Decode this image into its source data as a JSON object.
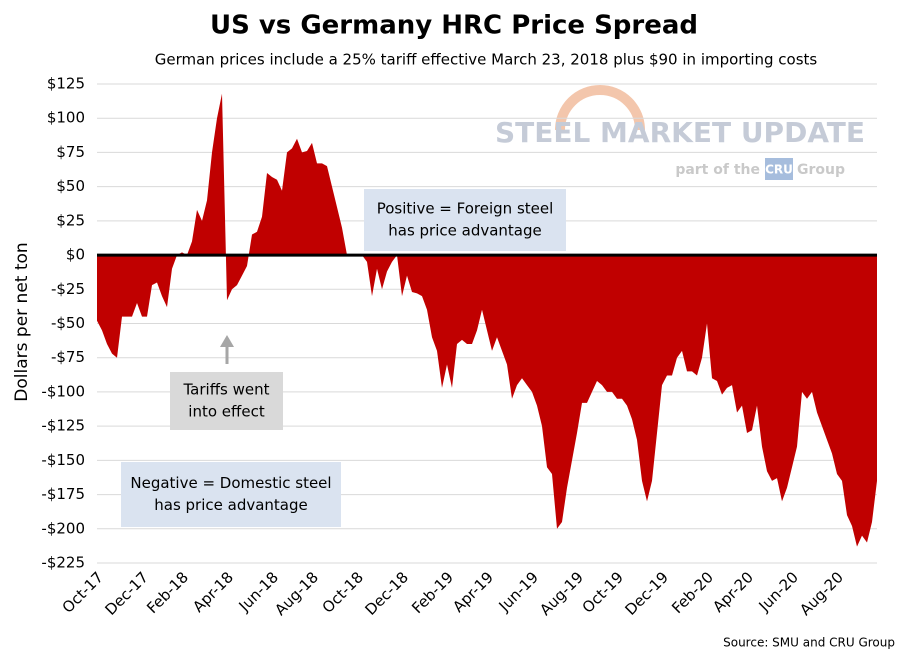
{
  "chart_data": {
    "type": "area",
    "title": "US vs Germany HRC Price Spread",
    "subtitle": "German prices include a 25% tariff effective March 23, 2018 plus $90 in importing costs",
    "y_label": "Dollars per net ton",
    "source": "Source: SMU and CRU Group",
    "logo": {
      "name": "STEEL MARKET UPDATE",
      "tagline_before": "part of the",
      "tagline_box": "CRU",
      "tagline_after": "Group"
    },
    "annotations": [
      {
        "lines": [
          "Positive = Foreign steel",
          "has price advantage"
        ]
      },
      {
        "lines": [
          "Tariffs went",
          "into effect"
        ]
      },
      {
        "lines": [
          "Negative = Domestic steel",
          "has price advantage"
        ]
      }
    ],
    "color": "#c00000",
    "grid": true,
    "ylim": [
      -225,
      125
    ],
    "yticks": [
      {
        "value": -225,
        "label": "-$225"
      },
      {
        "value": -200,
        "label": "-$200"
      },
      {
        "value": -175,
        "label": "-$175"
      },
      {
        "value": -150,
        "label": "-$150"
      },
      {
        "value": -125,
        "label": "-$125"
      },
      {
        "value": -100,
        "label": "-$100"
      },
      {
        "value": -75,
        "label": "-$75"
      },
      {
        "value": -50,
        "label": "-$50"
      },
      {
        "value": -25,
        "label": "-$25"
      },
      {
        "value": 0,
        "label": "$0"
      },
      {
        "value": 25,
        "label": "$25"
      },
      {
        "value": 50,
        "label": "$50"
      },
      {
        "value": 75,
        "label": "$75"
      },
      {
        "value": 100,
        "label": "$100"
      },
      {
        "value": 125,
        "label": "$125"
      }
    ],
    "categories": [
      "Oct-17",
      null,
      null,
      null,
      null,
      null,
      null,
      null,
      null,
      "Dec-17",
      null,
      null,
      null,
      null,
      null,
      null,
      null,
      "Feb-18",
      null,
      null,
      null,
      null,
      null,
      null,
      null,
      null,
      "Apr-18",
      null,
      null,
      null,
      null,
      null,
      null,
      null,
      null,
      "Jun-18",
      null,
      null,
      null,
      null,
      null,
      null,
      null,
      "Aug-18",
      null,
      null,
      null,
      null,
      null,
      null,
      null,
      null,
      "Oct-18",
      null,
      null,
      null,
      null,
      null,
      null,
      null,
      null,
      "Dec-18",
      null,
      null,
      null,
      null,
      null,
      null,
      null,
      null,
      "Feb-19",
      null,
      null,
      null,
      null,
      null,
      null,
      null,
      "Apr-19",
      null,
      null,
      null,
      null,
      null,
      null,
      null,
      null,
      "Jun-19",
      null,
      null,
      null,
      null,
      null,
      null,
      null,
      null,
      "Aug-19",
      null,
      null,
      null,
      null,
      null,
      null,
      null,
      "Oct-19",
      null,
      null,
      null,
      null,
      null,
      null,
      null,
      null,
      "Dec-19",
      null,
      null,
      null,
      null,
      null,
      null,
      null,
      null,
      "Feb-20",
      null,
      null,
      null,
      null,
      null,
      null,
      null,
      "Apr-20",
      null,
      null,
      null,
      null,
      null,
      null,
      null,
      null,
      "Jun-20",
      null,
      null,
      null,
      null,
      null,
      null,
      null,
      null,
      "Aug-20",
      null,
      null,
      null,
      null,
      null,
      null,
      null,
      null
    ],
    "values": [
      -48,
      -55,
      -65,
      -72,
      -75,
      -45,
      -45,
      -45,
      -35,
      -45,
      -45,
      -22,
      -20,
      -30,
      -38,
      -10,
      0,
      2,
      0,
      10,
      33,
      25,
      40,
      75,
      100,
      118,
      -33,
      -25,
      -22,
      -15,
      -8,
      15,
      17,
      28,
      60,
      57,
      55,
      47,
      75,
      78,
      85,
      75,
      76,
      82,
      67,
      67,
      65,
      50,
      35,
      20,
      0,
      0,
      0,
      0,
      -5,
      -30,
      -10,
      -25,
      -12,
      -5,
      0,
      -30,
      -15,
      -27,
      -28,
      -30,
      -40,
      -60,
      -70,
      -97,
      -80,
      -97,
      -65,
      -62,
      -65,
      -65,
      -55,
      -40,
      -55,
      -70,
      -60,
      -70,
      -80,
      -105,
      -95,
      -90,
      -95,
      -100,
      -110,
      -125,
      -155,
      -160,
      -200,
      -195,
      -170,
      -150,
      -130,
      -108,
      -108,
      -100,
      -92,
      -95,
      -100,
      -100,
      -105,
      -105,
      -110,
      -120,
      -135,
      -165,
      -180,
      -165,
      -130,
      -95,
      -88,
      -88,
      -75,
      -70,
      -85,
      -85,
      -88,
      -75,
      -50,
      -90,
      -92,
      -102,
      -97,
      -95,
      -115,
      -110,
      -130,
      -128,
      -110,
      -140,
      -158,
      -165,
      -163,
      -180,
      -170,
      -155,
      -140,
      -100,
      -105,
      -100,
      -115,
      -125,
      -135,
      -145,
      -160,
      -165,
      -190,
      -198,
      -213,
      -205,
      -210,
      -195,
      -165
    ]
  }
}
